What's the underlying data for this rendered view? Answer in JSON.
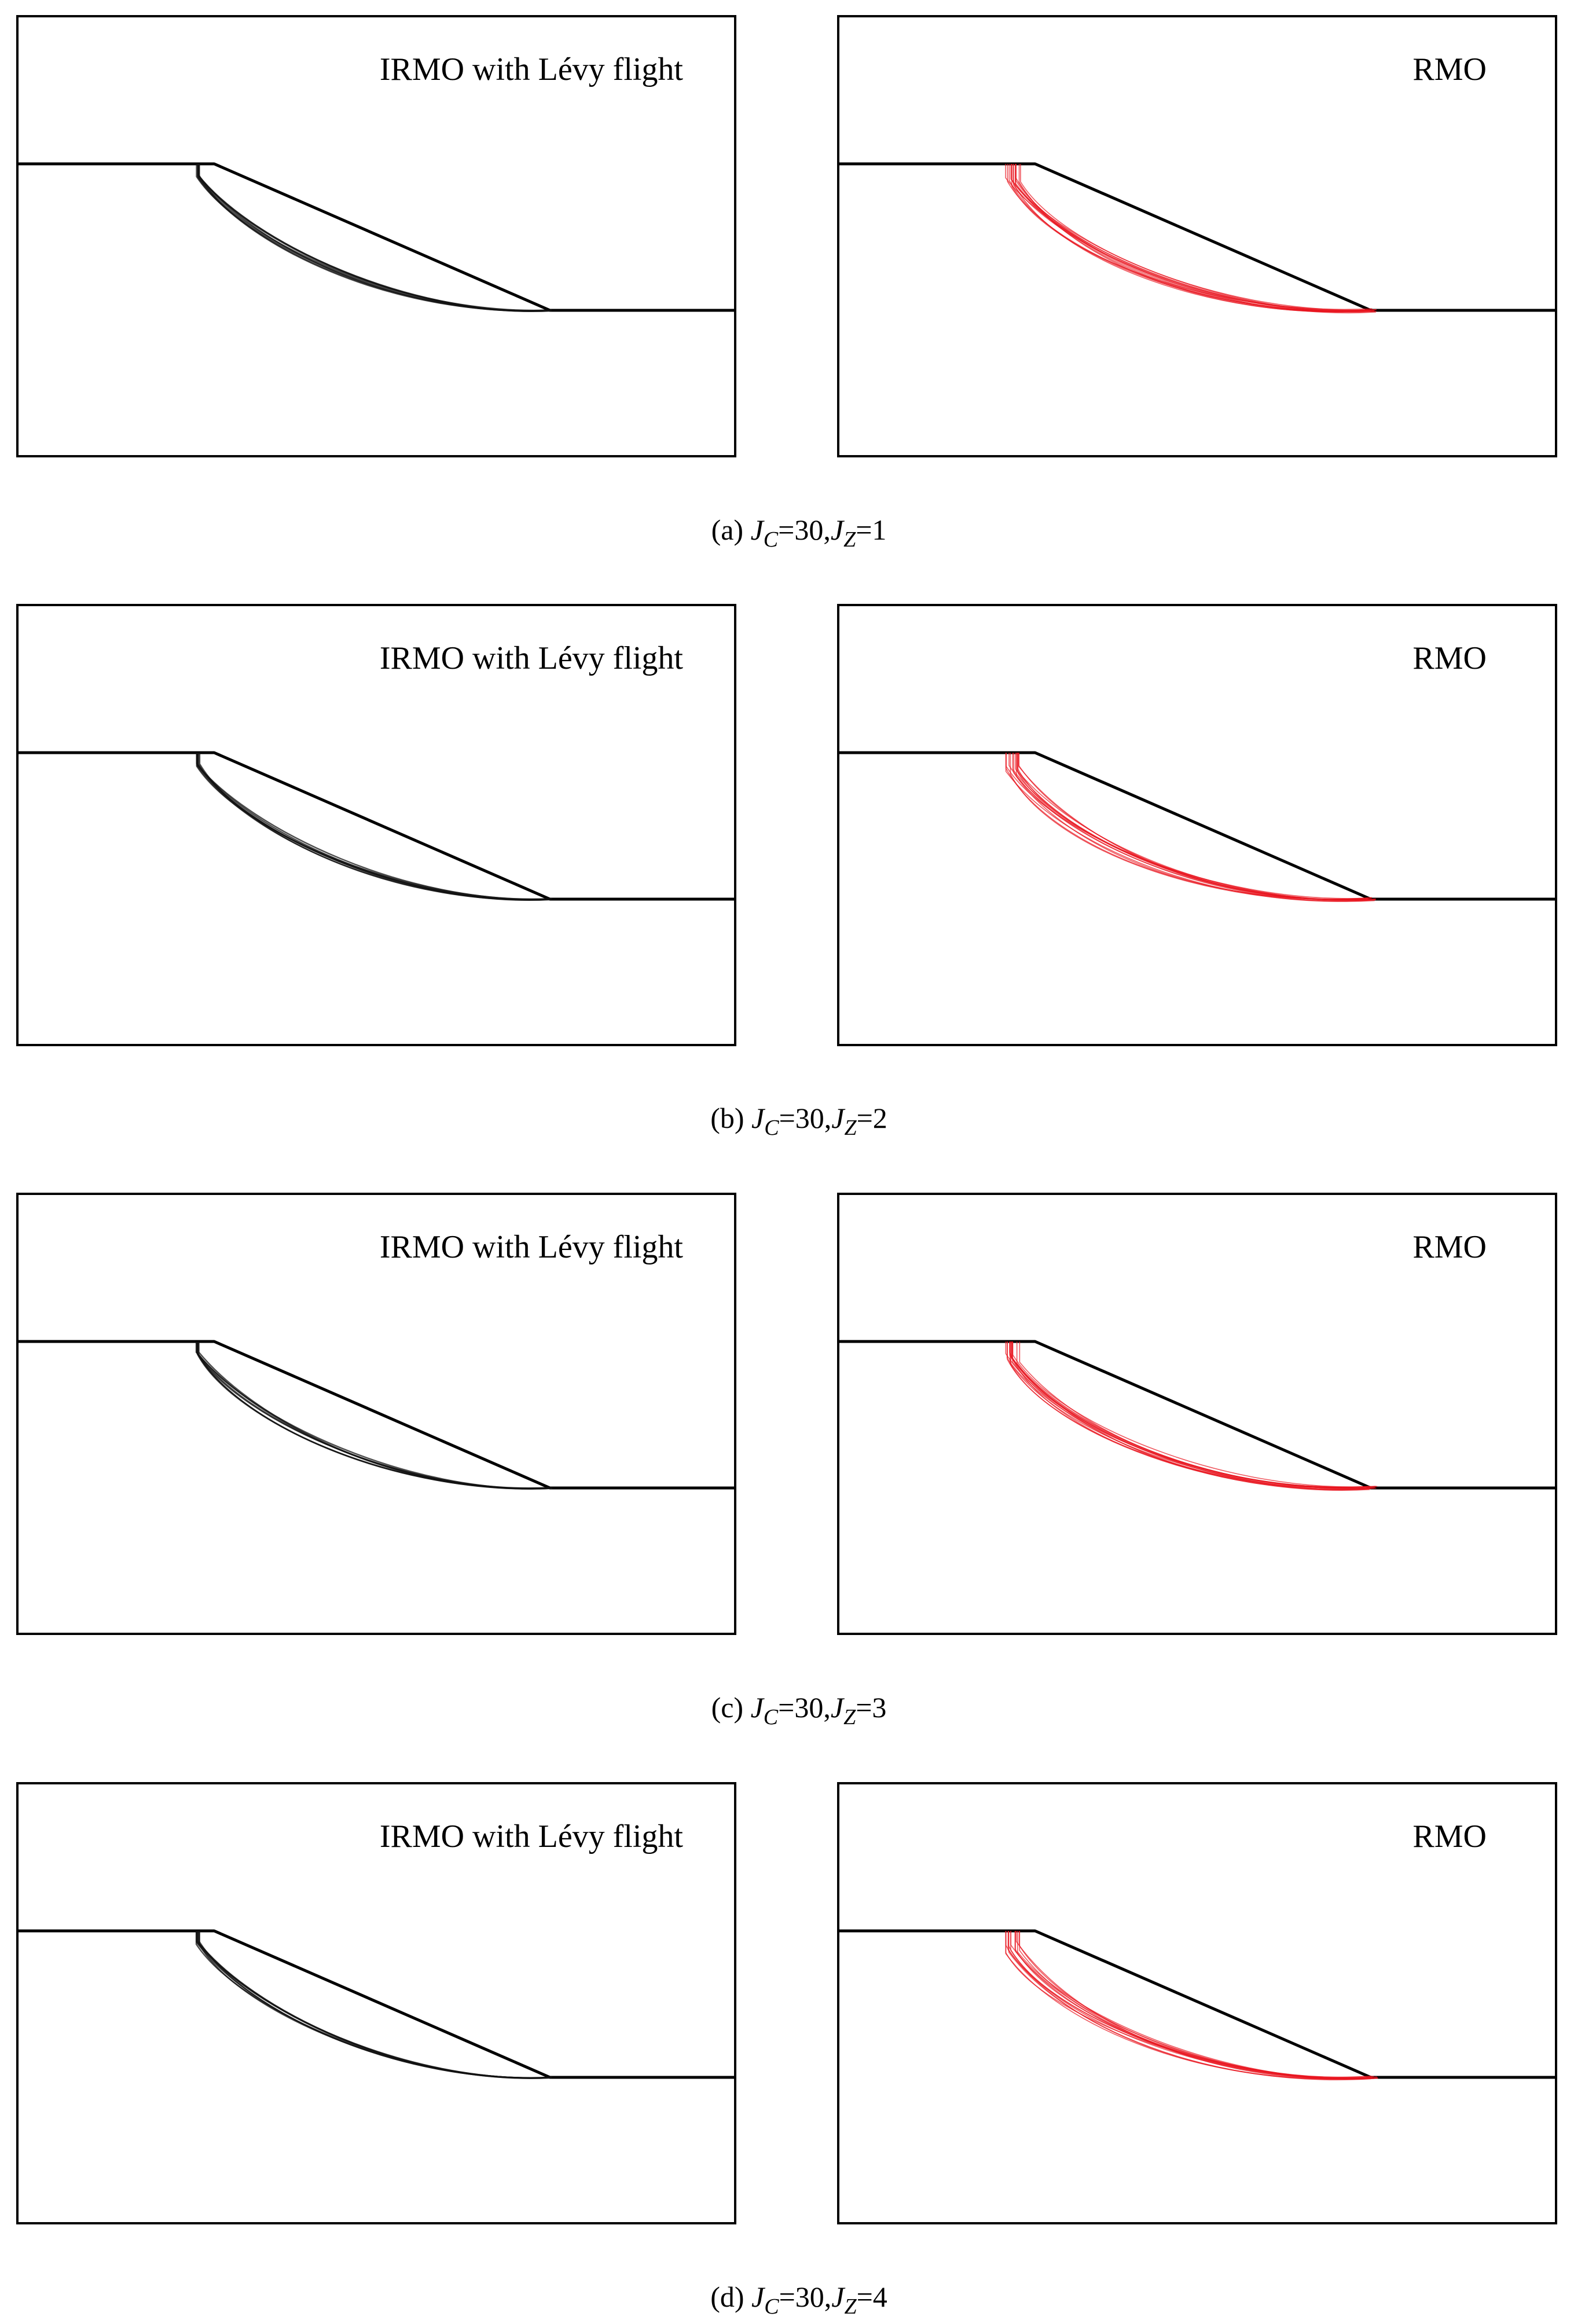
{
  "figure": {
    "panel_label_left": "IRMO with Lévy flight",
    "panel_label_right": "RMO",
    "colors": {
      "irmo_curves": "#111111",
      "rmo_curves": "#e8141e",
      "frame": "#000000"
    },
    "cases": [
      {
        "letter": "(a)",
        "jc_value": "=30,",
        "jz_value": "=1"
      },
      {
        "letter": "(b)",
        "jc_value": "=30,",
        "jz_value": "=2"
      },
      {
        "letter": "(c)",
        "jc_value": "=30,",
        "jz_value": "=3"
      },
      {
        "letter": "(d)",
        "jc_value": "=30,",
        "jz_value": "=4"
      }
    ],
    "jc_symbol": "J",
    "jc_sub": "C",
    "jz_symbol": "J",
    "jz_sub": "Z"
  }
}
